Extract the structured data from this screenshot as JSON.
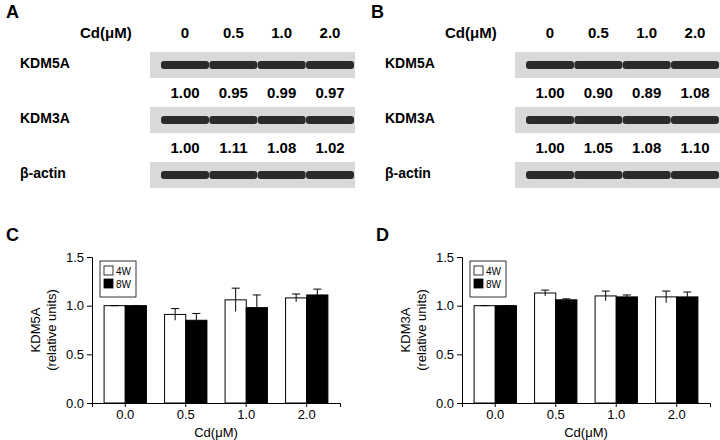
{
  "chart_data": [
    {
      "type": "blot",
      "title": "A",
      "xlabel": "Cd(μM)",
      "categories": [
        "0",
        "0.5",
        "1.0",
        "2.0"
      ],
      "series": [
        {
          "name": "KDM5A",
          "values": [
            1.0,
            0.95,
            0.99,
            0.97
          ],
          "value_labels": [
            "1.00",
            "0.95",
            "0.99",
            "0.97"
          ]
        },
        {
          "name": "KDM3A",
          "values": [
            1.0,
            1.11,
            1.08,
            1.02
          ],
          "value_labels": [
            "1.00",
            "1.11",
            "1.08",
            "1.02"
          ]
        }
      ],
      "loading_control": "β-actin"
    },
    {
      "type": "blot",
      "title": "B",
      "xlabel": "Cd(μM)",
      "categories": [
        "0",
        "0.5",
        "1.0",
        "2.0"
      ],
      "series": [
        {
          "name": "KDM5A",
          "values": [
            1.0,
            0.9,
            0.89,
            1.08
          ],
          "value_labels": [
            "1.00",
            "0.90",
            "0.89",
            "1.08"
          ]
        },
        {
          "name": "KDM3A",
          "values": [
            1.0,
            1.05,
            1.08,
            1.1
          ],
          "value_labels": [
            "1.00",
            "1.05",
            "1.08",
            "1.10"
          ]
        }
      ],
      "loading_control": "β-actin"
    },
    {
      "type": "bar",
      "title": "C",
      "xlabel": "Cd(μM)",
      "ylabel": [
        "KDM5A",
        "(relative units)"
      ],
      "categories": [
        "0.0",
        "0.5",
        "1.0",
        "2.0"
      ],
      "series": [
        {
          "name": "4W",
          "color": "#ffffff",
          "values": [
            1.0,
            0.91,
            1.06,
            1.08
          ],
          "errors": [
            0,
            0.06,
            0.12,
            0.04
          ]
        },
        {
          "name": "8W",
          "color": "#000000",
          "values": [
            1.0,
            0.85,
            0.98,
            1.11
          ],
          "errors": [
            0,
            0.07,
            0.13,
            0.06
          ]
        }
      ],
      "ylim": [
        0,
        1.5
      ],
      "yticks": [
        {
          "value": 0,
          "label": "0.0"
        },
        {
          "value": 0.5,
          "label": "0.5"
        },
        {
          "value": 1,
          "label": "1.0"
        },
        {
          "value": 1.5,
          "label": "1.5"
        }
      ],
      "grid": false,
      "legend": "upper left"
    },
    {
      "type": "bar",
      "title": "D",
      "xlabel": "Cd(μM)",
      "ylabel": [
        "KDM3A",
        "(relative units)"
      ],
      "categories": [
        "0.0",
        "0.5",
        "1.0",
        "2.0"
      ],
      "series": [
        {
          "name": "4W",
          "color": "#ffffff",
          "values": [
            1.0,
            1.13,
            1.1,
            1.09
          ],
          "errors": [
            0,
            0.03,
            0.05,
            0.06
          ]
        },
        {
          "name": "8W",
          "color": "#000000",
          "values": [
            1.0,
            1.06,
            1.09,
            1.09
          ],
          "errors": [
            0,
            0.01,
            0.02,
            0.05
          ]
        }
      ],
      "ylim": [
        0,
        1.5
      ],
      "yticks": [
        {
          "value": 0,
          "label": "0.0"
        },
        {
          "value": 0.5,
          "label": "0.5"
        },
        {
          "value": 1,
          "label": "1.0"
        },
        {
          "value": 1.5,
          "label": "1.5"
        }
      ],
      "grid": false,
      "legend": "upper left"
    }
  ]
}
